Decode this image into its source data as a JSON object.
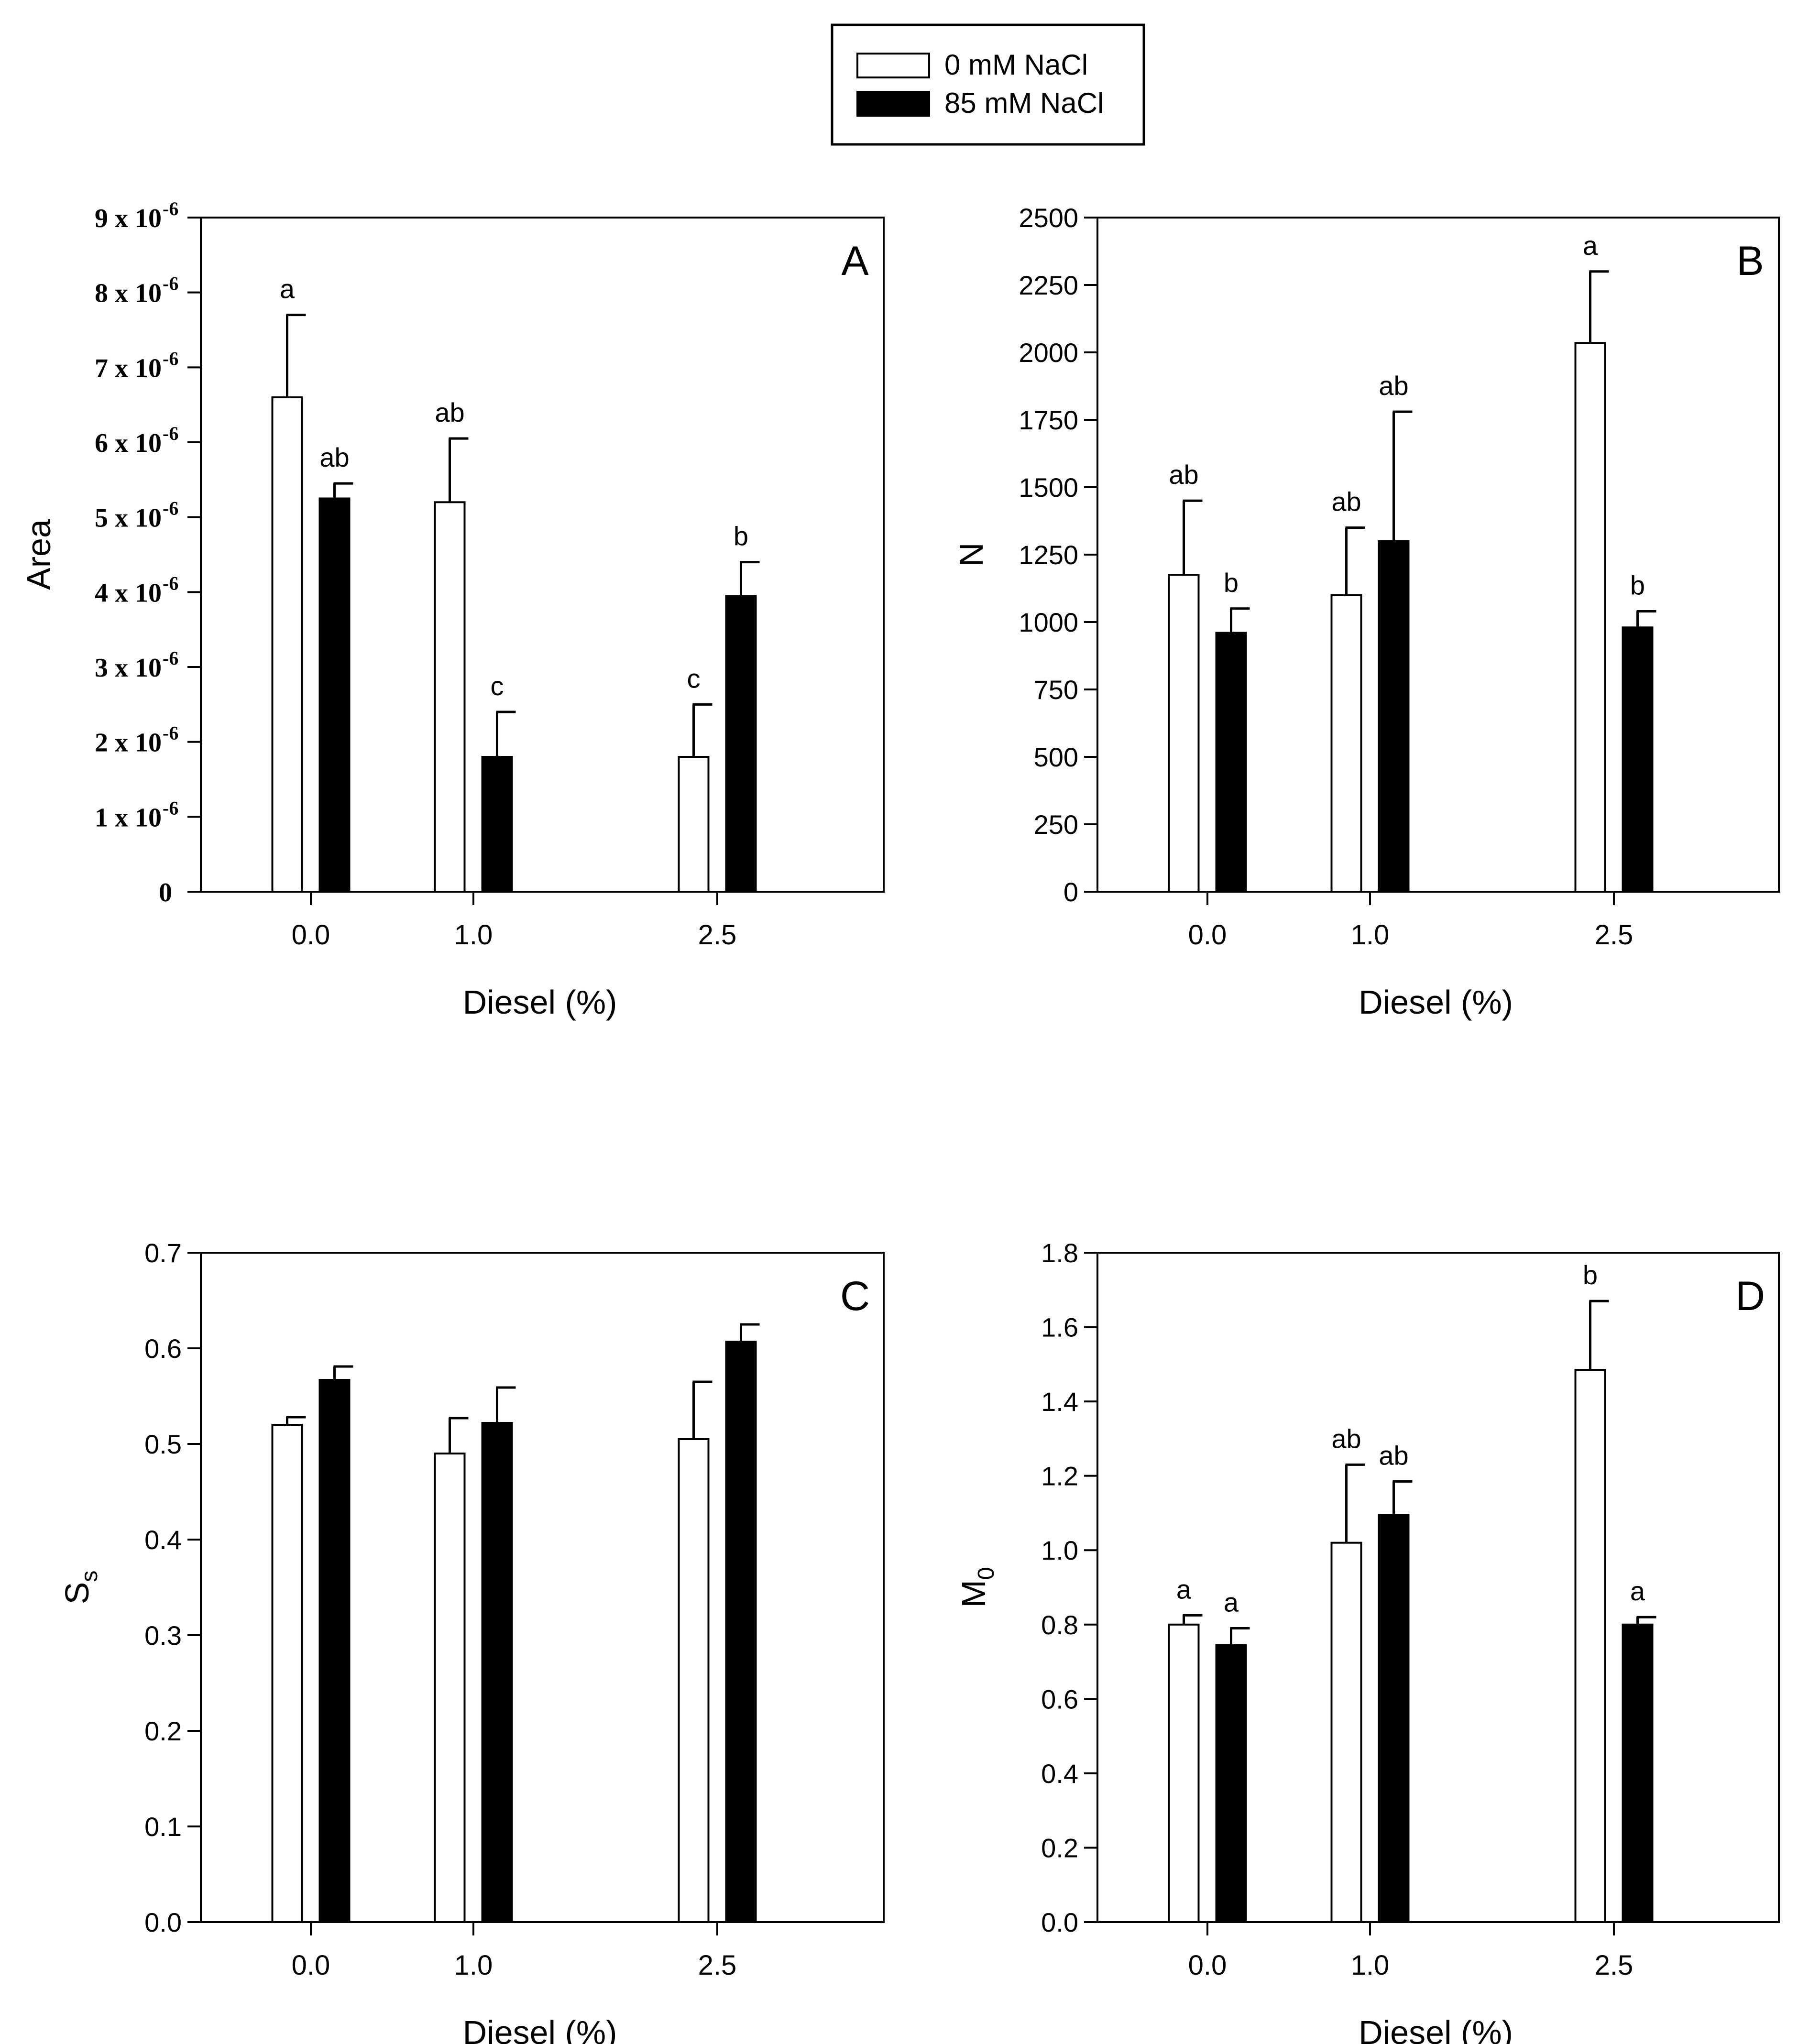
{
  "legend": {
    "items": [
      {
        "label": "0 mM NaCl",
        "fill": "#ffffff"
      },
      {
        "label": "85 mM NaCl",
        "fill": "#000000"
      }
    ]
  },
  "colors": {
    "axis": "#000000",
    "open_bar": "#ffffff",
    "filled_bar": "#000000"
  },
  "chart_data": [
    {
      "panel": "A",
      "type": "bar",
      "xlabel": "Diesel (%)",
      "ylabel": "Area",
      "categories": [
        "0.0",
        "1.0",
        "2.5"
      ],
      "ylim": [
        0,
        9
      ],
      "y_unit_exponent": -6,
      "yticks": [
        0,
        1,
        2,
        3,
        4,
        5,
        6,
        7,
        8,
        9
      ],
      "ytick_labels": [
        "0",
        "1 x 10",
        "2 x 10",
        "3 x 10",
        "4 x 10",
        "5 x 10",
        "6 x 10",
        "7 x 10",
        "8 x 10",
        "9 x 10"
      ],
      "ytick_superscript": "-6",
      "series": [
        {
          "name": "0 mM NaCl",
          "values": [
            6.6,
            5.2,
            1.8
          ],
          "errors": [
            1.1,
            0.85,
            0.7
          ],
          "letters": [
            "a",
            "ab",
            "c"
          ]
        },
        {
          "name": "85 mM NaCl",
          "values": [
            5.25,
            1.8,
            3.95
          ],
          "errors": [
            0.2,
            0.6,
            0.45
          ],
          "letters": [
            "ab",
            "c",
            "b"
          ]
        }
      ]
    },
    {
      "panel": "B",
      "type": "bar",
      "xlabel": "Diesel (%)",
      "ylabel": "N",
      "categories": [
        "0.0",
        "1.0",
        "2.5"
      ],
      "ylim": [
        0,
        2500
      ],
      "yticks": [
        0,
        250,
        500,
        750,
        1000,
        1250,
        1500,
        1750,
        2000,
        2250,
        2500
      ],
      "ytick_labels": [
        "0",
        "250",
        "500",
        "750",
        "1000",
        "1250",
        "1500",
        "1750",
        "2000",
        "2250",
        "2500"
      ],
      "series": [
        {
          "name": "0 mM NaCl",
          "values": [
            1175,
            1100,
            2035
          ],
          "errors": [
            275,
            250,
            265
          ],
          "letters": [
            "ab",
            "ab",
            "a"
          ]
        },
        {
          "name": "85 mM NaCl",
          "values": [
            960,
            1300,
            980
          ],
          "errors": [
            90,
            480,
            60
          ],
          "letters": [
            "b",
            "ab",
            "b"
          ]
        }
      ]
    },
    {
      "panel": "C",
      "type": "bar",
      "xlabel": "Diesel (%)",
      "ylabel": "S",
      "ylabel_subscript": "s",
      "categories": [
        "0.0",
        "1.0",
        "2.5"
      ],
      "ylim": [
        0,
        0.7
      ],
      "yticks": [
        0,
        0.1,
        0.2,
        0.3,
        0.4,
        0.5,
        0.6,
        0.7
      ],
      "ytick_labels": [
        "0.0",
        "0.1",
        "0.2",
        "0.3",
        "0.4",
        "0.5",
        "0.6",
        "0.7"
      ],
      "series": [
        {
          "name": "0 mM NaCl",
          "values": [
            0.52,
            0.49,
            0.505
          ],
          "errors": [
            0.008,
            0.037,
            0.06
          ],
          "letters": []
        },
        {
          "name": "85 mM NaCl",
          "values": [
            0.567,
            0.522,
            0.607
          ],
          "errors": [
            0.014,
            0.037,
            0.018
          ],
          "letters": []
        }
      ]
    },
    {
      "panel": "D",
      "type": "bar",
      "xlabel": "Diesel (%)",
      "ylabel": "M",
      "ylabel_subscript": "0",
      "categories": [
        "0.0",
        "1.0",
        "2.5"
      ],
      "ylim": [
        0,
        1.8
      ],
      "yticks": [
        0,
        0.2,
        0.4,
        0.6,
        0.8,
        1.0,
        1.2,
        1.4,
        1.6,
        1.8
      ],
      "ytick_labels": [
        "0.0",
        "0.2",
        "0.4",
        "0.6",
        "0.8",
        "1.0",
        "1.2",
        "1.4",
        "1.6",
        "1.8"
      ],
      "series": [
        {
          "name": "0 mM NaCl",
          "values": [
            0.8,
            1.02,
            1.485
          ],
          "errors": [
            0.025,
            0.21,
            0.185
          ],
          "letters": [
            "a",
            "ab",
            "b"
          ]
        },
        {
          "name": "85 mM NaCl",
          "values": [
            0.745,
            1.095,
            0.8
          ],
          "errors": [
            0.045,
            0.09,
            0.02
          ],
          "letters": [
            "a",
            "ab",
            "a"
          ]
        }
      ]
    }
  ]
}
